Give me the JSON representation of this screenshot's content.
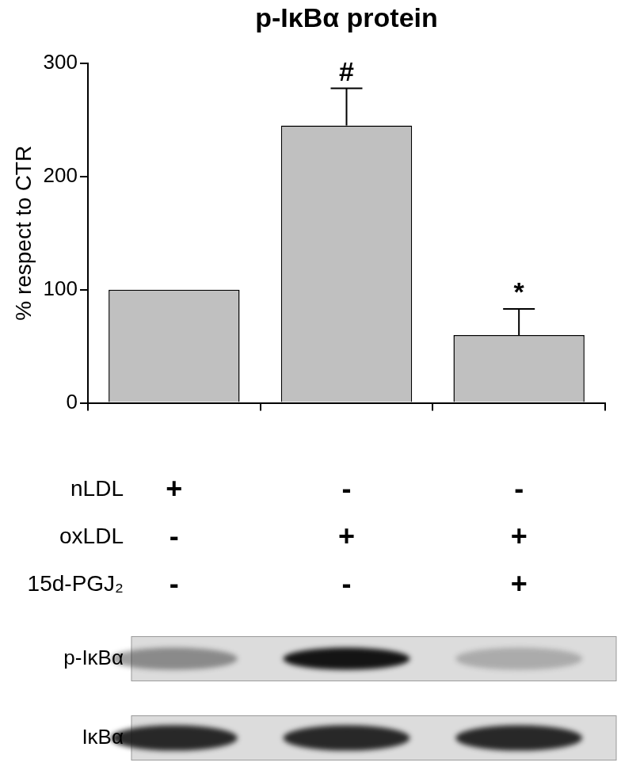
{
  "chart_data": {
    "type": "bar",
    "title": "p-IκBα protein",
    "y_label": "% respect to CTR",
    "categories": [
      null,
      null,
      null
    ],
    "values": [
      100,
      245,
      60
    ],
    "errors": [
      0,
      33,
      23
    ],
    "color": "#c0c0c0",
    "ylim": [
      0,
      300
    ],
    "yticks": [
      0,
      100,
      200,
      300
    ],
    "grid": false,
    "annotations": [
      {
        "category": 1,
        "text": "#"
      },
      {
        "category": 2,
        "text": "*"
      }
    ],
    "conditions": [
      {
        "label": "nLDL",
        "marks": [
          "+",
          "-",
          "-"
        ]
      },
      {
        "label": "oxLDL",
        "marks": [
          "-",
          "+",
          "+"
        ]
      },
      {
        "label": "15d-PGJ₂",
        "marks": [
          "-",
          "-",
          "+"
        ]
      }
    ],
    "blots": [
      {
        "label": "p-IκBα"
      },
      {
        "label": "IκBα"
      }
    ]
  }
}
